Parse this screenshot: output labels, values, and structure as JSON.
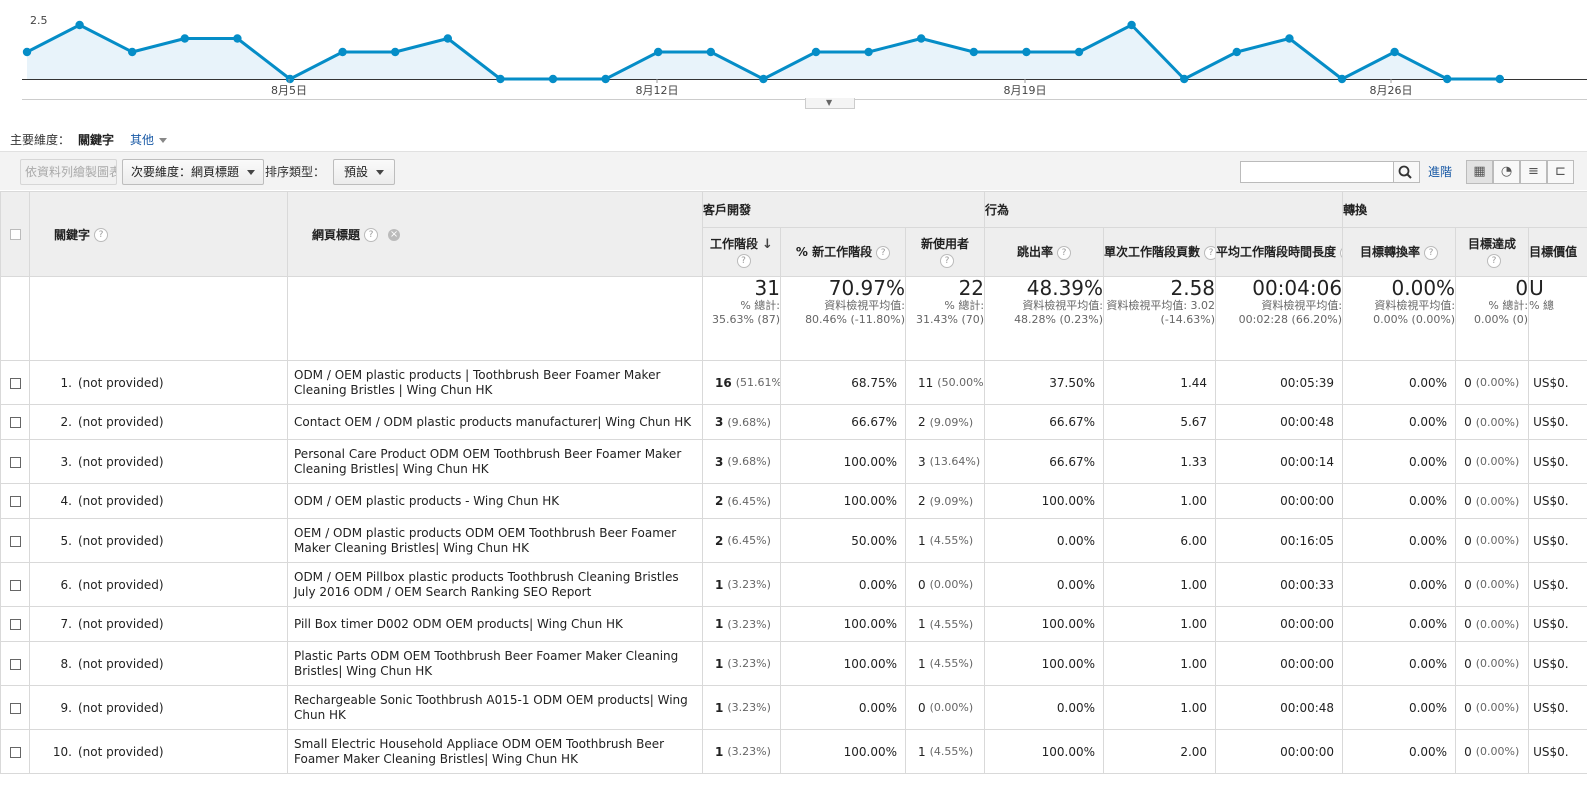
{
  "chart": {
    "y_tick_label": "2.5",
    "x_labels": [
      "8月5日",
      "8月12日",
      "8月19日",
      "8月26日"
    ],
    "series_values": [
      2,
      3,
      2,
      2.5,
      2.5,
      1,
      2,
      2,
      2.5,
      1,
      1,
      1,
      2,
      2,
      1,
      2,
      2,
      2.5,
      2,
      2,
      2,
      3,
      1,
      2,
      2.5,
      1,
      2,
      1,
      1
    ],
    "color": "#058dc7"
  },
  "dimensions": {
    "label": "主要維度：",
    "current": "關鍵字",
    "other": "其他"
  },
  "toolbar": {
    "plot_rows": "依資料列繪製圖表",
    "secondary_dim": "次要維度：網頁標題",
    "sort_label": "排序類型：",
    "sort_value": "預設",
    "search_value": "",
    "advanced": "進階"
  },
  "table": {
    "groups": {
      "acquisition": "客戶開發",
      "behavior": "行為",
      "conversion": "轉換"
    },
    "headers": {
      "keyword": "關鍵字",
      "page_title": "網頁標題",
      "sessions": "工作階段",
      "new_sessions": "% 新工作階段",
      "new_users": "新使用者",
      "bounce": "跳出率",
      "pages_session": "單次工作階段頁數",
      "avg_duration": "平均工作階段時間長度",
      "goal_conv": "目標轉換率",
      "goal_comp": "目標達成",
      "goal_value": "目標價值"
    },
    "totals": {
      "sessions": {
        "value": "31",
        "sub": "% 總計: 35.63% (87)"
      },
      "new_sessions": {
        "value": "70.97%",
        "sub": "資料檢視平均值: 80.46% (-11.80%)"
      },
      "new_users": {
        "value": "22",
        "sub": "% 總計: 31.43% (70)"
      },
      "bounce": {
        "value": "48.39%",
        "sub": "資料檢視平均值: 48.28% (0.23%)"
      },
      "pages_session": {
        "value": "2.58",
        "sub": "資料檢視平均值: 3.02 (-14.63%)"
      },
      "avg_duration": {
        "value": "00:04:06",
        "sub": "資料檢視平均值: 00:02:28 (66.20%)"
      },
      "goal_conv": {
        "value": "0.00%",
        "sub": "資料檢視平均值: 0.00% (0.00%)"
      },
      "goal_comp": {
        "value": "0",
        "sub": "% 總計: 0.00% (0)"
      },
      "goal_value": {
        "value": "U",
        "sub": "% 總"
      }
    },
    "rows": [
      {
        "idx": "1.",
        "kw": "(not provided)",
        "title": "ODM / OEM plastic products | Toothbrush Beer Foamer Maker Cleaning Bristles | Wing Chun HK",
        "sess": "16",
        "sess_pct": "(51.61%)",
        "new_sess": "68.75%",
        "new_users": "11",
        "nu_pct": "(50.00%)",
        "bounce": "37.50%",
        "pps": "1.44",
        "dur": "00:05:39",
        "gcr": "0.00%",
        "gc": "0",
        "gc_pct": "(0.00%)",
        "gv": "US$0."
      },
      {
        "idx": "2.",
        "kw": "(not provided)",
        "title": "Contact OEM / ODM plastic products manufacturer| Wing Chun HK",
        "sess": "3",
        "sess_pct": "(9.68%)",
        "new_sess": "66.67%",
        "new_users": "2",
        "nu_pct": "(9.09%)",
        "bounce": "66.67%",
        "pps": "5.67",
        "dur": "00:00:48",
        "gcr": "0.00%",
        "gc": "0",
        "gc_pct": "(0.00%)",
        "gv": "US$0."
      },
      {
        "idx": "3.",
        "kw": "(not provided)",
        "title": "Personal Care Product ODM OEM Toothbrush Beer Foamer Maker Cleaning Bristles| Wing Chun HK",
        "sess": "3",
        "sess_pct": "(9.68%)",
        "new_sess": "100.00%",
        "new_users": "3",
        "nu_pct": "(13.64%)",
        "bounce": "66.67%",
        "pps": "1.33",
        "dur": "00:00:14",
        "gcr": "0.00%",
        "gc": "0",
        "gc_pct": "(0.00%)",
        "gv": "US$0."
      },
      {
        "idx": "4.",
        "kw": "(not provided)",
        "title": "ODM / OEM plastic products - Wing Chun HK",
        "sess": "2",
        "sess_pct": "(6.45%)",
        "new_sess": "100.00%",
        "new_users": "2",
        "nu_pct": "(9.09%)",
        "bounce": "100.00%",
        "pps": "1.00",
        "dur": "00:00:00",
        "gcr": "0.00%",
        "gc": "0",
        "gc_pct": "(0.00%)",
        "gv": "US$0."
      },
      {
        "idx": "5.",
        "kw": "(not provided)",
        "title": "OEM / ODM plastic products ODM OEM Toothbrush Beer Foamer Maker Cleaning Bristles| Wing Chun HK",
        "sess": "2",
        "sess_pct": "(6.45%)",
        "new_sess": "50.00%",
        "new_users": "1",
        "nu_pct": "(4.55%)",
        "bounce": "0.00%",
        "pps": "6.00",
        "dur": "00:16:05",
        "gcr": "0.00%",
        "gc": "0",
        "gc_pct": "(0.00%)",
        "gv": "US$0."
      },
      {
        "idx": "6.",
        "kw": "(not provided)",
        "title": "ODM / OEM Pillbox plastic products Toothbrush Cleaning Bristles July 2016 ODM / OEM Search Ranking SEO Report",
        "sess": "1",
        "sess_pct": "(3.23%)",
        "new_sess": "0.00%",
        "new_users": "0",
        "nu_pct": "(0.00%)",
        "bounce": "0.00%",
        "pps": "1.00",
        "dur": "00:00:33",
        "gcr": "0.00%",
        "gc": "0",
        "gc_pct": "(0.00%)",
        "gv": "US$0."
      },
      {
        "idx": "7.",
        "kw": "(not provided)",
        "title": "Pill Box timer D002 ODM OEM products| Wing Chun HK",
        "sess": "1",
        "sess_pct": "(3.23%)",
        "new_sess": "100.00%",
        "new_users": "1",
        "nu_pct": "(4.55%)",
        "bounce": "100.00%",
        "pps": "1.00",
        "dur": "00:00:00",
        "gcr": "0.00%",
        "gc": "0",
        "gc_pct": "(0.00%)",
        "gv": "US$0."
      },
      {
        "idx": "8.",
        "kw": "(not provided)",
        "title": "Plastic Parts ODM OEM Toothbrush Beer Foamer Maker Cleaning Bristles| Wing Chun HK",
        "sess": "1",
        "sess_pct": "(3.23%)",
        "new_sess": "100.00%",
        "new_users": "1",
        "nu_pct": "(4.55%)",
        "bounce": "100.00%",
        "pps": "1.00",
        "dur": "00:00:00",
        "gcr": "0.00%",
        "gc": "0",
        "gc_pct": "(0.00%)",
        "gv": "US$0."
      },
      {
        "idx": "9.",
        "kw": "(not provided)",
        "title": "Rechargeable Sonic Toothbrush A015-1 ODM OEM products| Wing Chun HK",
        "sess": "1",
        "sess_pct": "(3.23%)",
        "new_sess": "0.00%",
        "new_users": "0",
        "nu_pct": "(0.00%)",
        "bounce": "0.00%",
        "pps": "1.00",
        "dur": "00:00:48",
        "gcr": "0.00%",
        "gc": "0",
        "gc_pct": "(0.00%)",
        "gv": "US$0."
      },
      {
        "idx": "10.",
        "kw": "(not provided)",
        "title": "Small Electric Household Appliace ODM OEM Toothbrush Beer Foamer Maker Cleaning Bristles| Wing Chun HK",
        "sess": "1",
        "sess_pct": "(3.23%)",
        "new_sess": "100.00%",
        "new_users": "1",
        "nu_pct": "(4.55%)",
        "bounce": "100.00%",
        "pps": "2.00",
        "dur": "00:00:00",
        "gcr": "0.00%",
        "gc": "0",
        "gc_pct": "(0.00%)",
        "gv": "US$0."
      }
    ]
  }
}
